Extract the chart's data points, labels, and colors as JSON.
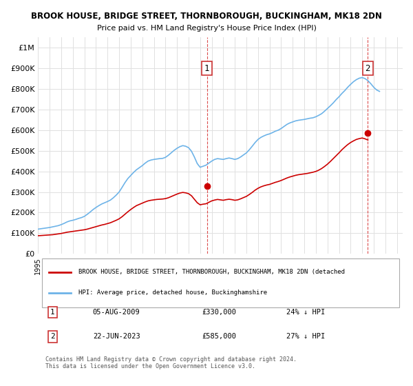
{
  "title1": "BROOK HOUSE, BRIDGE STREET, THORNBOROUGH, BUCKINGHAM, MK18 2DN",
  "title2": "Price paid vs. HM Land Registry's House Price Index (HPI)",
  "ylabel_ticks": [
    "£0",
    "£100K",
    "£200K",
    "£300K",
    "£400K",
    "£500K",
    "£600K",
    "£700K",
    "£800K",
    "£900K",
    "£1M"
  ],
  "ytick_values": [
    0,
    100000,
    200000,
    300000,
    400000,
    500000,
    600000,
    700000,
    800000,
    900000,
    1000000
  ],
  "ylim": [
    0,
    1050000
  ],
  "xlim_start": 1995.0,
  "xlim_end": 2026.5,
  "legend_line1": "BROOK HOUSE, BRIDGE STREET, THORNBOROUGH, BUCKINGHAM, MK18 2DN (detached",
  "legend_line2": "HPI: Average price, detached house, Buckinghamshire",
  "transaction1_label": "1",
  "transaction1_date": "05-AUG-2009",
  "transaction1_price": "£330,000",
  "transaction1_hpi": "24% ↓ HPI",
  "transaction2_label": "2",
  "transaction2_date": "22-JUN-2023",
  "transaction2_price": "£585,000",
  "transaction2_hpi": "27% ↓ HPI",
  "footer": "Contains HM Land Registry data © Crown copyright and database right 2024.\nThis data is licensed under the Open Government Licence v3.0.",
  "hpi_color": "#6db3e8",
  "price_color": "#cc0000",
  "marker1_x": 2009.58,
  "marker1_y": 330000,
  "marker2_x": 2023.47,
  "marker2_y": 585000,
  "vline1_x": 2009.58,
  "vline2_x": 2023.47,
  "background_color": "#ffffff",
  "grid_color": "#e0e0e0",
  "hpi_data_x": [
    1995,
    1995.25,
    1995.5,
    1995.75,
    1996,
    1996.25,
    1996.5,
    1996.75,
    1997,
    1997.25,
    1997.5,
    1997.75,
    1998,
    1998.25,
    1998.5,
    1998.75,
    1999,
    1999.25,
    1999.5,
    1999.75,
    2000,
    2000.25,
    2000.5,
    2000.75,
    2001,
    2001.25,
    2001.5,
    2001.75,
    2002,
    2002.25,
    2002.5,
    2002.75,
    2003,
    2003.25,
    2003.5,
    2003.75,
    2004,
    2004.25,
    2004.5,
    2004.75,
    2005,
    2005.25,
    2005.5,
    2005.75,
    2006,
    2006.25,
    2006.5,
    2006.75,
    2007,
    2007.25,
    2007.5,
    2007.75,
    2008,
    2008.25,
    2008.5,
    2008.75,
    2009,
    2009.25,
    2009.5,
    2009.75,
    2010,
    2010.25,
    2010.5,
    2010.75,
    2011,
    2011.25,
    2011.5,
    2011.75,
    2012,
    2012.25,
    2012.5,
    2012.75,
    2013,
    2013.25,
    2013.5,
    2013.75,
    2014,
    2014.25,
    2014.5,
    2014.75,
    2015,
    2015.25,
    2015.5,
    2015.75,
    2016,
    2016.25,
    2016.5,
    2016.75,
    2017,
    2017.25,
    2017.5,
    2017.75,
    2018,
    2018.25,
    2018.5,
    2018.75,
    2019,
    2019.25,
    2019.5,
    2019.75,
    2020,
    2020.25,
    2020.5,
    2020.75,
    2021,
    2021.25,
    2021.5,
    2021.75,
    2022,
    2022.25,
    2022.5,
    2022.75,
    2023,
    2023.25,
    2023.5,
    2023.75,
    2024,
    2024.25,
    2024.5
  ],
  "hpi_data_y": [
    120000,
    122000,
    124000,
    126000,
    128000,
    131000,
    134000,
    137000,
    142000,
    148000,
    155000,
    160000,
    163000,
    167000,
    172000,
    176000,
    182000,
    192000,
    203000,
    215000,
    225000,
    234000,
    242000,
    248000,
    254000,
    261000,
    272000,
    285000,
    300000,
    322000,
    345000,
    365000,
    380000,
    395000,
    408000,
    418000,
    428000,
    440000,
    450000,
    455000,
    458000,
    460000,
    462000,
    463000,
    468000,
    478000,
    490000,
    502000,
    512000,
    520000,
    525000,
    522000,
    515000,
    498000,
    470000,
    438000,
    420000,
    425000,
    430000,
    440000,
    450000,
    458000,
    462000,
    460000,
    458000,
    462000,
    465000,
    462000,
    458000,
    462000,
    470000,
    480000,
    490000,
    505000,
    522000,
    540000,
    555000,
    565000,
    572000,
    578000,
    582000,
    588000,
    595000,
    600000,
    608000,
    618000,
    628000,
    635000,
    640000,
    645000,
    648000,
    650000,
    652000,
    655000,
    658000,
    660000,
    665000,
    672000,
    680000,
    692000,
    705000,
    718000,
    732000,
    748000,
    762000,
    778000,
    792000,
    808000,
    822000,
    835000,
    845000,
    852000,
    855000,
    850000,
    840000,
    825000,
    808000,
    795000,
    788000
  ],
  "price_data_x": [
    1995,
    1995.25,
    1995.5,
    1995.75,
    1996,
    1996.25,
    1996.5,
    1996.75,
    1997,
    1997.25,
    1997.5,
    1997.75,
    1998,
    1998.25,
    1998.5,
    1998.75,
    1999,
    1999.25,
    1999.5,
    1999.75,
    2000,
    2000.25,
    2000.5,
    2000.75,
    2001,
    2001.25,
    2001.5,
    2001.75,
    2002,
    2002.25,
    2002.5,
    2002.75,
    2003,
    2003.25,
    2003.5,
    2003.75,
    2004,
    2004.25,
    2004.5,
    2004.75,
    2005,
    2005.25,
    2005.5,
    2005.75,
    2006,
    2006.25,
    2006.5,
    2006.75,
    2007,
    2007.25,
    2007.5,
    2007.75,
    2008,
    2008.25,
    2008.5,
    2008.75,
    2009,
    2009.25,
    2009.5,
    2009.75,
    2010,
    2010.25,
    2010.5,
    2010.75,
    2011,
    2011.25,
    2011.5,
    2011.75,
    2012,
    2012.25,
    2012.5,
    2012.75,
    2013,
    2013.25,
    2013.5,
    2013.75,
    2014,
    2014.25,
    2014.5,
    2014.75,
    2015,
    2015.25,
    2015.5,
    2015.75,
    2016,
    2016.25,
    2016.5,
    2016.75,
    2017,
    2017.25,
    2017.5,
    2017.75,
    2018,
    2018.25,
    2018.5,
    2018.75,
    2019,
    2019.25,
    2019.5,
    2019.75,
    2020,
    2020.25,
    2020.5,
    2020.75,
    2021,
    2021.25,
    2021.5,
    2021.75,
    2022,
    2022.25,
    2022.5,
    2022.75,
    2023,
    2023.25,
    2023.5
  ],
  "price_data_y": [
    88000,
    89000,
    90000,
    91000,
    92000,
    93000,
    95000,
    97000,
    99000,
    102000,
    105000,
    107000,
    109000,
    111000,
    113000,
    115000,
    117000,
    120000,
    124000,
    128000,
    132000,
    136000,
    140000,
    143000,
    147000,
    151000,
    157000,
    163000,
    170000,
    180000,
    192000,
    204000,
    215000,
    225000,
    234000,
    240000,
    246000,
    252000,
    257000,
    260000,
    262000,
    264000,
    265000,
    266000,
    268000,
    272000,
    278000,
    284000,
    290000,
    295000,
    298000,
    296000,
    292000,
    282000,
    265000,
    248000,
    238000,
    241000,
    243000,
    250000,
    257000,
    261000,
    264000,
    262000,
    260000,
    263000,
    265000,
    263000,
    260000,
    262000,
    267000,
    273000,
    279000,
    288000,
    298000,
    309000,
    318000,
    325000,
    330000,
    334000,
    337000,
    342000,
    347000,
    351000,
    356000,
    362000,
    368000,
    373000,
    377000,
    381000,
    384000,
    386000,
    388000,
    390000,
    393000,
    396000,
    400000,
    406000,
    414000,
    424000,
    435000,
    448000,
    462000,
    476000,
    490000,
    505000,
    518000,
    530000,
    540000,
    548000,
    555000,
    559000,
    562000,
    558000,
    552000
  ]
}
